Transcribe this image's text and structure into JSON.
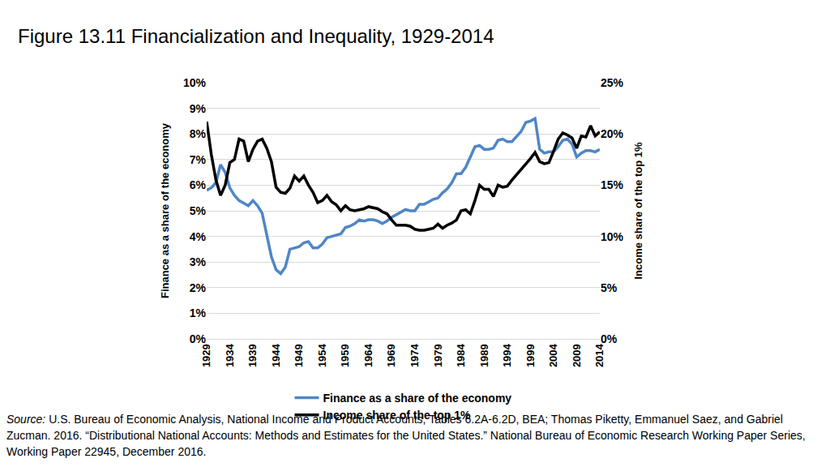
{
  "chart_data": {
    "type": "line",
    "title": "Figure 13.11 Financialization and Inequality, 1929-2014",
    "x": [
      1929,
      1930,
      1931,
      1932,
      1933,
      1934,
      1935,
      1936,
      1937,
      1938,
      1939,
      1940,
      1941,
      1942,
      1943,
      1944,
      1945,
      1946,
      1947,
      1948,
      1949,
      1950,
      1951,
      1952,
      1953,
      1954,
      1955,
      1956,
      1957,
      1958,
      1959,
      1960,
      1961,
      1962,
      1963,
      1964,
      1965,
      1966,
      1967,
      1968,
      1969,
      1970,
      1971,
      1972,
      1973,
      1974,
      1975,
      1976,
      1977,
      1978,
      1979,
      1980,
      1981,
      1982,
      1983,
      1984,
      1985,
      1986,
      1987,
      1988,
      1989,
      1990,
      1991,
      1992,
      1993,
      1994,
      1995,
      1996,
      1997,
      1998,
      1999,
      2000,
      2001,
      2002,
      2003,
      2004,
      2005,
      2006,
      2007,
      2008,
      2009,
      2010,
      2011,
      2012,
      2013,
      2014
    ],
    "series": [
      {
        "name": "Finance as a share of the economy",
        "color": "#4f86c6",
        "axis": "y",
        "values": [
          5.8,
          5.9,
          6.1,
          6.8,
          6.5,
          5.9,
          5.6,
          5.4,
          5.3,
          5.2,
          5.4,
          5.2,
          4.9,
          4.1,
          3.2,
          2.7,
          2.55,
          2.8,
          3.5,
          3.55,
          3.6,
          3.75,
          3.8,
          3.55,
          3.55,
          3.7,
          3.95,
          4.0,
          4.05,
          4.1,
          4.35,
          4.4,
          4.5,
          4.65,
          4.6,
          4.65,
          4.65,
          4.6,
          4.5,
          4.6,
          4.75,
          4.85,
          4.95,
          5.05,
          5.0,
          5.0,
          5.25,
          5.25,
          5.35,
          5.45,
          5.5,
          5.7,
          5.85,
          6.1,
          6.45,
          6.45,
          6.7,
          7.1,
          7.5,
          7.55,
          7.4,
          7.4,
          7.45,
          7.75,
          7.8,
          7.7,
          7.7,
          7.9,
          8.1,
          8.45,
          8.5,
          8.6,
          7.4,
          7.25,
          7.3,
          7.3,
          7.5,
          7.75,
          7.8,
          7.6,
          7.1,
          7.25,
          7.35,
          7.35,
          7.3,
          7.4
        ]
      },
      {
        "name": "Income share of the top 1%",
        "color": "#000000",
        "axis": "y2",
        "values": [
          21.2,
          18.0,
          15.5,
          14.0,
          15.0,
          17.2,
          17.5,
          19.5,
          19.3,
          17.3,
          18.5,
          19.3,
          19.5,
          18.6,
          17.3,
          14.8,
          14.3,
          14.2,
          14.7,
          15.9,
          15.4,
          15.9,
          15.0,
          14.3,
          13.3,
          13.5,
          14.0,
          13.4,
          13.1,
          12.5,
          13.0,
          12.6,
          12.5,
          12.6,
          12.7,
          12.9,
          12.8,
          12.7,
          12.4,
          12.2,
          11.6,
          11.1,
          11.1,
          11.1,
          11.0,
          10.7,
          10.6,
          10.6,
          10.7,
          10.8,
          11.2,
          10.8,
          11.1,
          11.3,
          11.6,
          12.5,
          12.6,
          12.2,
          13.5,
          15.0,
          14.6,
          14.6,
          13.9,
          15.0,
          14.8,
          14.9,
          15.5,
          16.0,
          16.6,
          17.0,
          17.6,
          18.2,
          17.3,
          17.1,
          17.2,
          18.3,
          19.5,
          20.1,
          19.9,
          19.6,
          18.6,
          19.8,
          19.7,
          20.8,
          19.8,
          20.2
        ]
      }
    ],
    "xlim": [
      1929,
      2014
    ],
    "xticks": [
      1929,
      1934,
      1939,
      1944,
      1949,
      1954,
      1959,
      1964,
      1969,
      1974,
      1979,
      1984,
      1989,
      1994,
      1999,
      2004,
      2009,
      2014
    ],
    "ylabel": "Finance as a share of the economy",
    "ylim": [
      0,
      10
    ],
    "yticks": [
      {
        "value": 0,
        "label": "0%"
      },
      {
        "value": 1,
        "label": "1%"
      },
      {
        "value": 2,
        "label": "2%"
      },
      {
        "value": 3,
        "label": "3%"
      },
      {
        "value": 4,
        "label": "4%"
      },
      {
        "value": 5,
        "label": "5%"
      },
      {
        "value": 6,
        "label": "6%"
      },
      {
        "value": 7,
        "label": "7%"
      },
      {
        "value": 8,
        "label": "8%"
      },
      {
        "value": 9,
        "label": "9%"
      },
      {
        "value": 10,
        "label": "10%"
      }
    ],
    "y2label": "Income share of the top 1%",
    "y2lim": [
      0,
      25
    ],
    "y2ticks": [
      {
        "value": 0,
        "label": "0%"
      },
      {
        "value": 5,
        "label": "5%"
      },
      {
        "value": 10,
        "label": "10%"
      },
      {
        "value": 15,
        "label": "15%"
      },
      {
        "value": 20,
        "label": "20%"
      },
      {
        "value": 25,
        "label": "25%"
      }
    ],
    "grid": true,
    "legend": "bottom",
    "source": {
      "label": "Source:",
      "text": "U.S. Bureau of Economic Analysis, National Income and Product Accounts, Tables 6.2A-6.2D, BEA; Thomas Piketty, Emmanuel Saez, and Gabriel Zucman. 2016. “Distributional National Accounts: Methods and Estimates for the United States.” National Bureau of Economic Research Working Paper Series, Working Paper 22945, December 2016."
    }
  }
}
